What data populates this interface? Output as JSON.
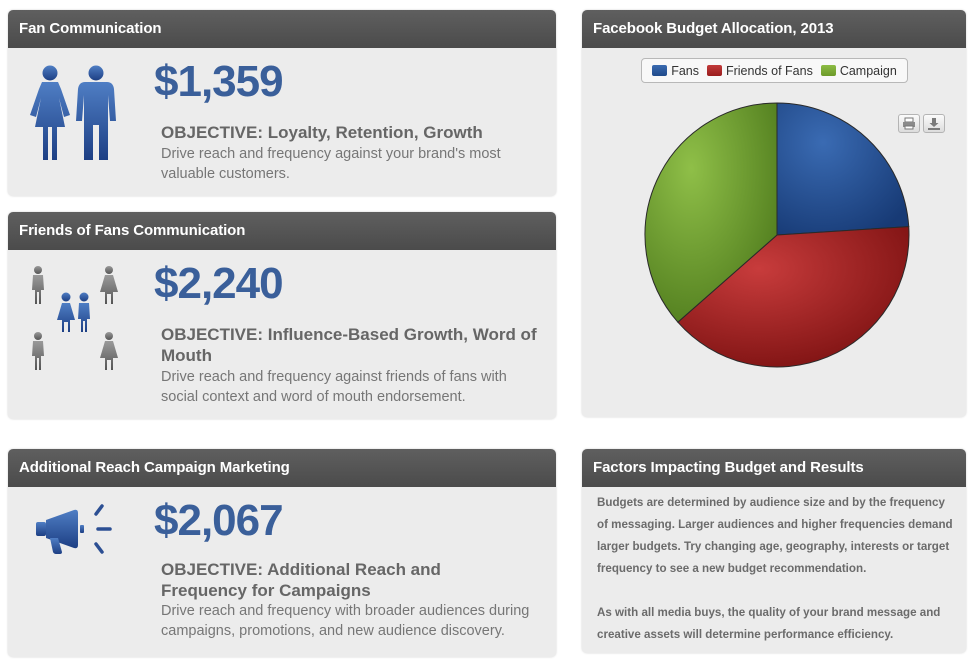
{
  "fan_panel": {
    "title": "Fan Communication",
    "amount": "$1,359",
    "objective": "OBJECTIVE: Loyalty, Retention, Growth",
    "description": "Drive reach and frequency against your brand's most valuable customers."
  },
  "friends_panel": {
    "title": "Friends of Fans Communication",
    "amount": "$2,240",
    "objective": "OBJECTIVE: Influence-Based Growth, Word of Mouth",
    "description": "Drive reach and frequency against friends of fans with social context and word of mouth endorsement."
  },
  "campaign_panel": {
    "title": "Additional Reach Campaign Marketing",
    "amount": "$2,067",
    "objective": "OBJECTIVE: Additional Reach and Frequency for Campaigns",
    "description": "Drive reach and frequency with broader audiences during campaigns, promotions, and new audience discovery."
  },
  "chart_panel": {
    "title": "Facebook Budget Allocation, 2013",
    "print_icon": "printer-icon",
    "download_icon": "download-icon"
  },
  "chart_data": {
    "type": "pie",
    "title": "Facebook Budget Allocation, 2013",
    "legend": "top",
    "categories": [
      "Fans",
      "Friends of Fans",
      "Campaign"
    ],
    "values": [
      1359,
      2240,
      2067
    ],
    "colors": [
      "#1f4a8a",
      "#9a1d1d",
      "#6d9a2a"
    ]
  },
  "factors_panel": {
    "title": "Factors Impacting Budget and Results",
    "paragraph1": "Budgets are determined by audience size and by the frequency of messaging. Larger audiences and higher frequencies demand larger budgets. Try changing age, geography, interests or target frequency to see a new budget recommendation.",
    "paragraph2": "As with all media buys, the quality of your brand message and creative assets will determine performance efficiency."
  },
  "icons": {
    "fans": "people-icon",
    "friends": "network-people-icon",
    "campaign": "megaphone-icon"
  }
}
